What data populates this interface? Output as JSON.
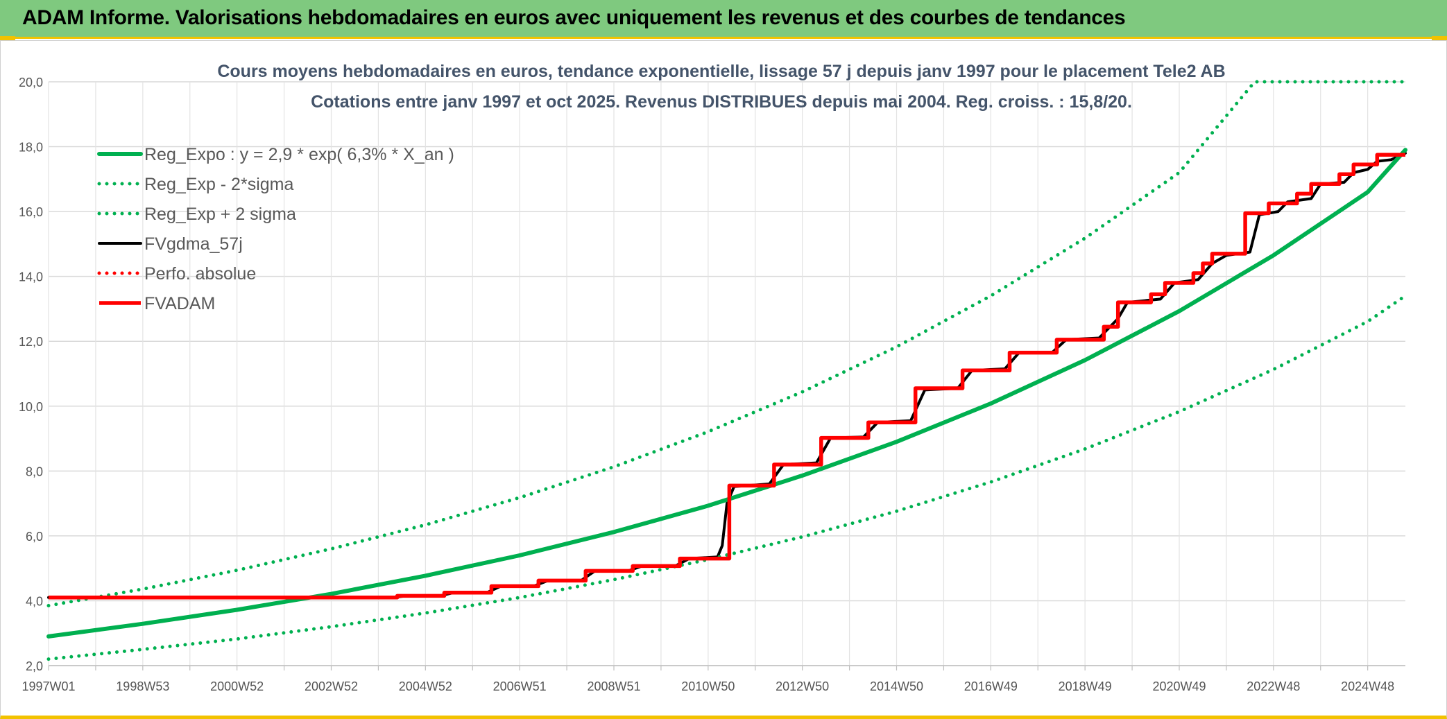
{
  "banner": {
    "title": "ADAM Informe. Valorisations hebdomadaires en euros avec uniquement les revenus et des courbes de tendances"
  },
  "colors": {
    "green": "#00b050",
    "red": "#ff0000",
    "black": "#000000",
    "banner": "#7fc97f",
    "accent": "#f2c200"
  },
  "chart_data": {
    "type": "line",
    "title": "Cours moyens hebdomadaires en euros, tendance exponentielle, lissage 57 j depuis janv 1997 pour le placement Tele2 AB",
    "subtitle": "Cotations entre janv 1997 et oct 2025. Revenus DISTRIBUES depuis mai 2004. Reg. croiss. : 15,8/20.",
    "xlabel": "",
    "ylabel": "",
    "x_range": [
      1997.0,
      2025.8
    ],
    "ylim": [
      2.0,
      20.0
    ],
    "y_ticks": [
      "2,0",
      "4,0",
      "6,0",
      "8,0",
      "10,0",
      "12,0",
      "14,0",
      "16,0",
      "18,0",
      "20,0"
    ],
    "x_ticks": [
      {
        "x": 1997.0,
        "label": "1997W01"
      },
      {
        "x": 1999.0,
        "label": "1998W53"
      },
      {
        "x": 2001.0,
        "label": "2000W52"
      },
      {
        "x": 2003.0,
        "label": "2002W52"
      },
      {
        "x": 2005.0,
        "label": "2004W52"
      },
      {
        "x": 2007.0,
        "label": "2006W51"
      },
      {
        "x": 2009.0,
        "label": "2008W51"
      },
      {
        "x": 2011.0,
        "label": "2010W50"
      },
      {
        "x": 2013.0,
        "label": "2012W50"
      },
      {
        "x": 2015.0,
        "label": "2014W50"
      },
      {
        "x": 2017.0,
        "label": "2016W49"
      },
      {
        "x": 2019.0,
        "label": "2018W49"
      },
      {
        "x": 2021.0,
        "label": "2020W49"
      },
      {
        "x": 2023.0,
        "label": "2022W48"
      },
      {
        "x": 2025.0,
        "label": "2024W48"
      }
    ],
    "grid": true,
    "legend_position": "top-left",
    "series": [
      {
        "name": "Reg_Expo : y = 2,9 * exp( 6,3% *  X_an )",
        "style": "solid",
        "color": "#00b050",
        "points": [
          [
            1997.0,
            2.9
          ],
          [
            1999.0,
            3.29
          ],
          [
            2001.0,
            3.72
          ],
          [
            2003.0,
            4.21
          ],
          [
            2005.0,
            4.77
          ],
          [
            2007.0,
            5.4
          ],
          [
            2009.0,
            6.12
          ],
          [
            2011.0,
            6.93
          ],
          [
            2013.0,
            7.86
          ],
          [
            2015.0,
            8.9
          ],
          [
            2017.0,
            10.08
          ],
          [
            2019.0,
            11.42
          ],
          [
            2021.0,
            12.93
          ],
          [
            2023.0,
            14.65
          ],
          [
            2025.0,
            16.6
          ],
          [
            2025.8,
            17.9
          ]
        ]
      },
      {
        "name": "Reg_Exp - 2*sigma",
        "style": "dotted",
        "color": "#00b050",
        "points": [
          [
            1997.0,
            2.2
          ],
          [
            1999.0,
            2.5
          ],
          [
            2001.0,
            2.82
          ],
          [
            2003.0,
            3.2
          ],
          [
            2005.0,
            3.62
          ],
          [
            2007.0,
            4.1
          ],
          [
            2009.0,
            4.65
          ],
          [
            2011.0,
            5.27
          ],
          [
            2013.0,
            5.97
          ],
          [
            2015.0,
            6.76
          ],
          [
            2017.0,
            7.66
          ],
          [
            2019.0,
            8.68
          ],
          [
            2021.0,
            9.83
          ],
          [
            2023.0,
            11.13
          ],
          [
            2025.0,
            12.61
          ],
          [
            2025.8,
            13.4
          ]
        ]
      },
      {
        "name": "Reg_Exp + 2 sigma",
        "style": "dotted",
        "color": "#00b050",
        "points": [
          [
            1997.0,
            3.85
          ],
          [
            1999.0,
            4.36
          ],
          [
            2001.0,
            4.94
          ],
          [
            2003.0,
            5.6
          ],
          [
            2005.0,
            6.34
          ],
          [
            2007.0,
            7.18
          ],
          [
            2009.0,
            8.13
          ],
          [
            2011.0,
            9.21
          ],
          [
            2013.0,
            10.44
          ],
          [
            2015.0,
            11.83
          ],
          [
            2017.0,
            13.4
          ],
          [
            2019.0,
            15.18
          ],
          [
            2021.0,
            17.2
          ],
          [
            2022.6,
            20.0
          ],
          [
            2025.8,
            20.0
          ]
        ]
      },
      {
        "name": "FVgdma_57j",
        "style": "smooth-steps",
        "color": "#000000",
        "points": [
          [
            1997.0,
            4.1
          ],
          [
            2004.3,
            4.1
          ],
          [
            2004.6,
            4.15
          ],
          [
            2005.3,
            4.15
          ],
          [
            2005.6,
            4.25
          ],
          [
            2006.3,
            4.25
          ],
          [
            2006.6,
            4.45
          ],
          [
            2007.3,
            4.45
          ],
          [
            2007.6,
            4.62
          ],
          [
            2008.3,
            4.62
          ],
          [
            2008.6,
            4.92
          ],
          [
            2009.3,
            4.92
          ],
          [
            2009.6,
            5.07
          ],
          [
            2010.3,
            5.07
          ],
          [
            2010.6,
            5.3
          ],
          [
            2011.2,
            5.35
          ],
          [
            2011.3,
            5.7
          ],
          [
            2011.4,
            7.0
          ],
          [
            2011.55,
            7.52
          ],
          [
            2012.3,
            7.6
          ],
          [
            2012.6,
            8.2
          ],
          [
            2013.3,
            8.25
          ],
          [
            2013.6,
            9.02
          ],
          [
            2014.3,
            9.05
          ],
          [
            2014.6,
            9.5
          ],
          [
            2015.3,
            9.55
          ],
          [
            2015.6,
            10.5
          ],
          [
            2016.3,
            10.55
          ],
          [
            2016.6,
            11.1
          ],
          [
            2017.3,
            11.15
          ],
          [
            2017.6,
            11.65
          ],
          [
            2018.3,
            11.65
          ],
          [
            2018.6,
            12.05
          ],
          [
            2019.3,
            12.1
          ],
          [
            2019.7,
            12.7
          ],
          [
            2019.9,
            13.2
          ],
          [
            2020.6,
            13.3
          ],
          [
            2020.9,
            13.8
          ],
          [
            2021.4,
            13.9
          ],
          [
            2021.7,
            14.4
          ],
          [
            2022.0,
            14.65
          ],
          [
            2022.5,
            14.75
          ],
          [
            2022.7,
            15.9
          ],
          [
            2023.1,
            16.0
          ],
          [
            2023.3,
            16.3
          ],
          [
            2023.8,
            16.4
          ],
          [
            2024.0,
            16.85
          ],
          [
            2024.5,
            16.9
          ],
          [
            2024.7,
            17.2
          ],
          [
            2025.0,
            17.3
          ],
          [
            2025.2,
            17.55
          ],
          [
            2025.5,
            17.6
          ],
          [
            2025.8,
            17.8
          ]
        ]
      },
      {
        "name": "Perfo. absolue",
        "style": "dotted",
        "color": "#ff0000",
        "points": []
      },
      {
        "name": "FVADAM",
        "style": "steps",
        "color": "#ff0000",
        "points": [
          [
            1997.0,
            4.1
          ],
          [
            2004.4,
            4.1
          ],
          [
            2004.4,
            4.15
          ],
          [
            2005.4,
            4.15
          ],
          [
            2005.4,
            4.25
          ],
          [
            2006.4,
            4.25
          ],
          [
            2006.4,
            4.45
          ],
          [
            2007.4,
            4.45
          ],
          [
            2007.4,
            4.62
          ],
          [
            2008.4,
            4.62
          ],
          [
            2008.4,
            4.92
          ],
          [
            2009.4,
            4.92
          ],
          [
            2009.4,
            5.07
          ],
          [
            2010.4,
            5.07
          ],
          [
            2010.4,
            5.3
          ],
          [
            2011.45,
            5.3
          ],
          [
            2011.45,
            7.55
          ],
          [
            2012.4,
            7.55
          ],
          [
            2012.4,
            8.2
          ],
          [
            2013.4,
            8.2
          ],
          [
            2013.4,
            9.02
          ],
          [
            2014.4,
            9.02
          ],
          [
            2014.4,
            9.5
          ],
          [
            2015.4,
            9.5
          ],
          [
            2015.4,
            10.55
          ],
          [
            2016.4,
            10.55
          ],
          [
            2016.4,
            11.1
          ],
          [
            2017.4,
            11.1
          ],
          [
            2017.4,
            11.65
          ],
          [
            2018.4,
            11.65
          ],
          [
            2018.4,
            12.05
          ],
          [
            2019.4,
            12.05
          ],
          [
            2019.4,
            12.45
          ],
          [
            2019.7,
            12.45
          ],
          [
            2019.7,
            13.2
          ],
          [
            2020.4,
            13.2
          ],
          [
            2020.4,
            13.45
          ],
          [
            2020.7,
            13.45
          ],
          [
            2020.7,
            13.8
          ],
          [
            2021.3,
            13.8
          ],
          [
            2021.3,
            14.1
          ],
          [
            2021.5,
            14.1
          ],
          [
            2021.5,
            14.4
          ],
          [
            2021.7,
            14.4
          ],
          [
            2021.7,
            14.7
          ],
          [
            2022.4,
            14.7
          ],
          [
            2022.4,
            15.95
          ],
          [
            2022.9,
            15.95
          ],
          [
            2022.9,
            16.25
          ],
          [
            2023.5,
            16.25
          ],
          [
            2023.5,
            16.55
          ],
          [
            2023.8,
            16.55
          ],
          [
            2023.8,
            16.85
          ],
          [
            2024.4,
            16.85
          ],
          [
            2024.4,
            17.15
          ],
          [
            2024.7,
            17.15
          ],
          [
            2024.7,
            17.45
          ],
          [
            2025.2,
            17.45
          ],
          [
            2025.2,
            17.75
          ],
          [
            2025.8,
            17.75
          ]
        ]
      }
    ]
  }
}
